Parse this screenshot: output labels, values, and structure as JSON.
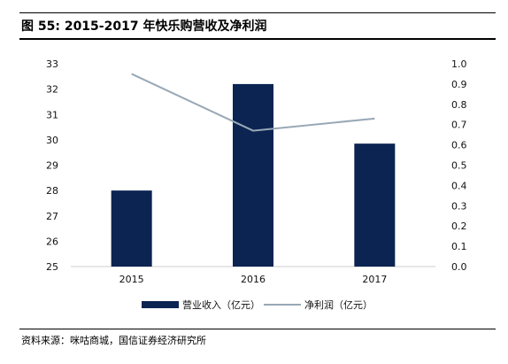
{
  "header": {
    "title": "图 55:  2015-2017 年快乐购营收及净利润"
  },
  "footer": {
    "source": "资料来源：咪咕商城，国信证券经济研究所"
  },
  "colors": {
    "bar": "#0b2452",
    "line": "#98a8b6",
    "axis": "#cccccc"
  },
  "chart_data": {
    "type": "bar",
    "categories": [
      "2015",
      "2016",
      "2017"
    ],
    "series": [
      {
        "name": "营业收入（亿元）",
        "type": "bar",
        "axis": "left",
        "values": [
          28.0,
          32.2,
          29.85
        ]
      },
      {
        "name": "净利润（亿元）",
        "type": "line",
        "axis": "right",
        "values": [
          0.95,
          0.67,
          0.73
        ]
      }
    ],
    "y_left": {
      "ylim": [
        25,
        33
      ],
      "ticks": [
        "25",
        "26",
        "27",
        "28",
        "29",
        "30",
        "31",
        "32",
        "33"
      ]
    },
    "y_right": {
      "ylim": [
        0,
        1
      ],
      "ticks": [
        "0.0",
        "0.1",
        "0.2",
        "0.3",
        "0.4",
        "0.5",
        "0.6",
        "0.7",
        "0.8",
        "0.9",
        "1.0"
      ]
    },
    "grid": false,
    "legend": "bottom-center"
  }
}
